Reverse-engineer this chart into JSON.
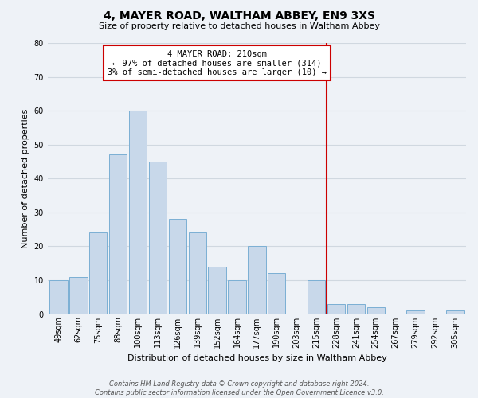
{
  "title": "4, MAYER ROAD, WALTHAM ABBEY, EN9 3XS",
  "subtitle": "Size of property relative to detached houses in Waltham Abbey",
  "xlabel": "Distribution of detached houses by size in Waltham Abbey",
  "ylabel": "Number of detached properties",
  "bar_labels": [
    "49sqm",
    "62sqm",
    "75sqm",
    "88sqm",
    "100sqm",
    "113sqm",
    "126sqm",
    "139sqm",
    "152sqm",
    "164sqm",
    "177sqm",
    "190sqm",
    "203sqm",
    "215sqm",
    "228sqm",
    "241sqm",
    "254sqm",
    "267sqm",
    "279sqm",
    "292sqm",
    "305sqm"
  ],
  "bar_values": [
    10,
    11,
    24,
    47,
    60,
    45,
    28,
    24,
    14,
    10,
    20,
    12,
    0,
    10,
    3,
    3,
    2,
    0,
    1,
    0,
    1
  ],
  "bar_color": "#c8d8ea",
  "bar_edge_color": "#7bafd4",
  "vline_x_idx": 13.5,
  "vline_color": "#cc0000",
  "ylim": [
    0,
    80
  ],
  "yticks": [
    0,
    10,
    20,
    30,
    40,
    50,
    60,
    70,
    80
  ],
  "grid_color": "#d0d8e0",
  "bg_color": "#eef2f7",
  "annotation_title": "4 MAYER ROAD: 210sqm",
  "annotation_line1": "← 97% of detached houses are smaller (314)",
  "annotation_line2": "3% of semi-detached houses are larger (10) →",
  "annotation_box_color": "#ffffff",
  "annotation_border_color": "#cc0000",
  "footer_line1": "Contains HM Land Registry data © Crown copyright and database right 2024.",
  "footer_line2": "Contains public sector information licensed under the Open Government Licence v3.0.",
  "title_fontsize": 10,
  "subtitle_fontsize": 8,
  "ylabel_fontsize": 8,
  "xlabel_fontsize": 8,
  "tick_fontsize": 7,
  "annotation_fontsize": 7.5,
  "footer_fontsize": 6
}
